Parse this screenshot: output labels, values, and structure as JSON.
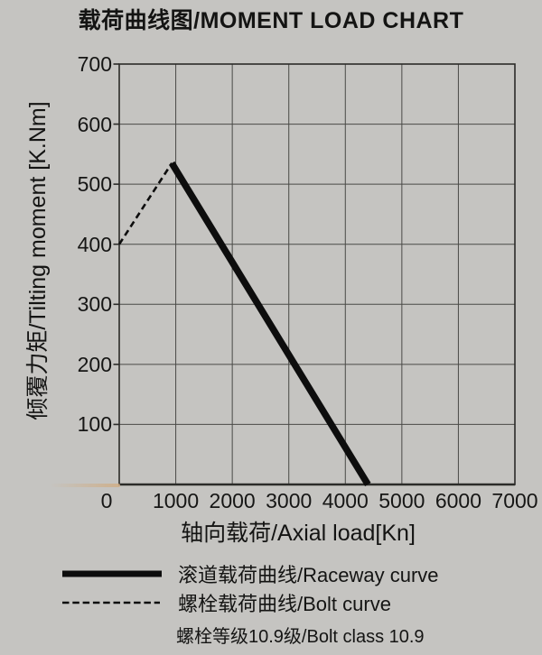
{
  "page_title": "载荷曲线图/MOMENT LOAD CHART",
  "colors": {
    "background": "#c5c4c1",
    "grid": "#4a4a47",
    "axis": "#2b2b29",
    "line": "#0d0d0d",
    "text": "#141413",
    "artifact": "#d0ad84"
  },
  "chart_data": {
    "type": "line",
    "title": "载荷曲线图/MOMENT LOAD CHART",
    "xlabel": "轴向载荷/Axial load[Kn]",
    "ylabel": "倾覆力矩/Tilting moment [K.Nm]",
    "xlim": [
      0,
      7000
    ],
    "ylim": [
      0,
      700
    ],
    "x_ticks": [
      "0",
      "1000",
      "2000",
      "3000",
      "4000",
      "5000",
      "6000",
      "7000"
    ],
    "y_ticks": [
      "100",
      "200",
      "300",
      "400",
      "500",
      "600",
      "700"
    ],
    "grid": true,
    "legend_position": "bottom",
    "series": [
      {
        "name": "滚道载荷曲线/Raceway curve",
        "style": "solid",
        "stroke_width": 7.5,
        "points": [
          [
            930,
            535
          ],
          [
            4400,
            0
          ]
        ]
      },
      {
        "name": "螺栓载荷曲线/Bolt curve",
        "style": "dashed",
        "stroke_width": 2.6,
        "points": [
          [
            0,
            400
          ],
          [
            930,
            535
          ]
        ]
      }
    ],
    "note": "螺栓等级10.9级/Bolt class 10.9"
  }
}
